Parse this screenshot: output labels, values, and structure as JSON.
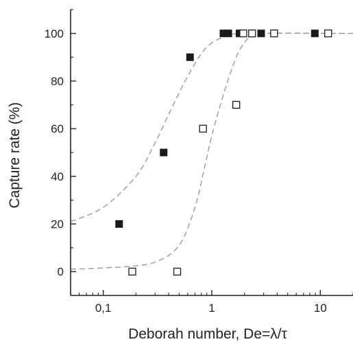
{
  "chart_data": {
    "type": "scatter",
    "xlabel": "Deborah number, De=λ/τ",
    "ylabel": "Capture rate (%)",
    "x_scale": "log",
    "xlim": [
      0.05,
      20
    ],
    "ylim": [
      -10,
      110
    ],
    "x_ticks": [
      {
        "value": 0.1,
        "label": "0,1"
      },
      {
        "value": 1,
        "label": "1"
      },
      {
        "value": 10,
        "label": "10"
      }
    ],
    "y_ticks": [
      {
        "value": 0,
        "label": "0"
      },
      {
        "value": 20,
        "label": "20"
      },
      {
        "value": 40,
        "label": "40"
      },
      {
        "value": 60,
        "label": "60"
      },
      {
        "value": 80,
        "label": "80"
      },
      {
        "value": 100,
        "label": "100"
      }
    ],
    "grid": false,
    "legend": "none",
    "series": [
      {
        "marker": "filled-square",
        "color": "#1a1a1a",
        "points": [
          {
            "x": 0.14,
            "y": 20
          },
          {
            "x": 0.36,
            "y": 50
          },
          {
            "x": 0.63,
            "y": 90
          },
          {
            "x": 1.28,
            "y": 100
          },
          {
            "x": 1.42,
            "y": 100
          },
          {
            "x": 1.8,
            "y": 100
          },
          {
            "x": 2.85,
            "y": 100
          },
          {
            "x": 8.9,
            "y": 100
          }
        ],
        "fit_curve": [
          {
            "x": 0.05,
            "y": 21
          },
          {
            "x": 0.1,
            "y": 27
          },
          {
            "x": 0.2,
            "y": 40
          },
          {
            "x": 0.3,
            "y": 54
          },
          {
            "x": 0.42,
            "y": 68
          },
          {
            "x": 0.6,
            "y": 82
          },
          {
            "x": 0.85,
            "y": 93
          },
          {
            "x": 1.2,
            "y": 98
          },
          {
            "x": 2,
            "y": 100
          },
          {
            "x": 20,
            "y": 100
          }
        ]
      },
      {
        "marker": "open-square",
        "color": "#1a1a1a",
        "points": [
          {
            "x": 0.185,
            "y": 0
          },
          {
            "x": 0.48,
            "y": 0
          },
          {
            "x": 0.83,
            "y": 60
          },
          {
            "x": 1.68,
            "y": 70
          },
          {
            "x": 1.95,
            "y": 100
          },
          {
            "x": 2.35,
            "y": 100
          },
          {
            "x": 3.75,
            "y": 100
          },
          {
            "x": 11.8,
            "y": 100
          }
        ],
        "fit_curve": [
          {
            "x": 0.05,
            "y": 1
          },
          {
            "x": 0.15,
            "y": 2
          },
          {
            "x": 0.3,
            "y": 4
          },
          {
            "x": 0.5,
            "y": 11
          },
          {
            "x": 0.7,
            "y": 27
          },
          {
            "x": 0.85,
            "y": 43
          },
          {
            "x": 1.0,
            "y": 57
          },
          {
            "x": 1.2,
            "y": 70
          },
          {
            "x": 1.5,
            "y": 84
          },
          {
            "x": 1.8,
            "y": 93
          },
          {
            "x": 2.3,
            "y": 99
          },
          {
            "x": 3,
            "y": 100
          },
          {
            "x": 20,
            "y": 100
          }
        ]
      }
    ]
  }
}
